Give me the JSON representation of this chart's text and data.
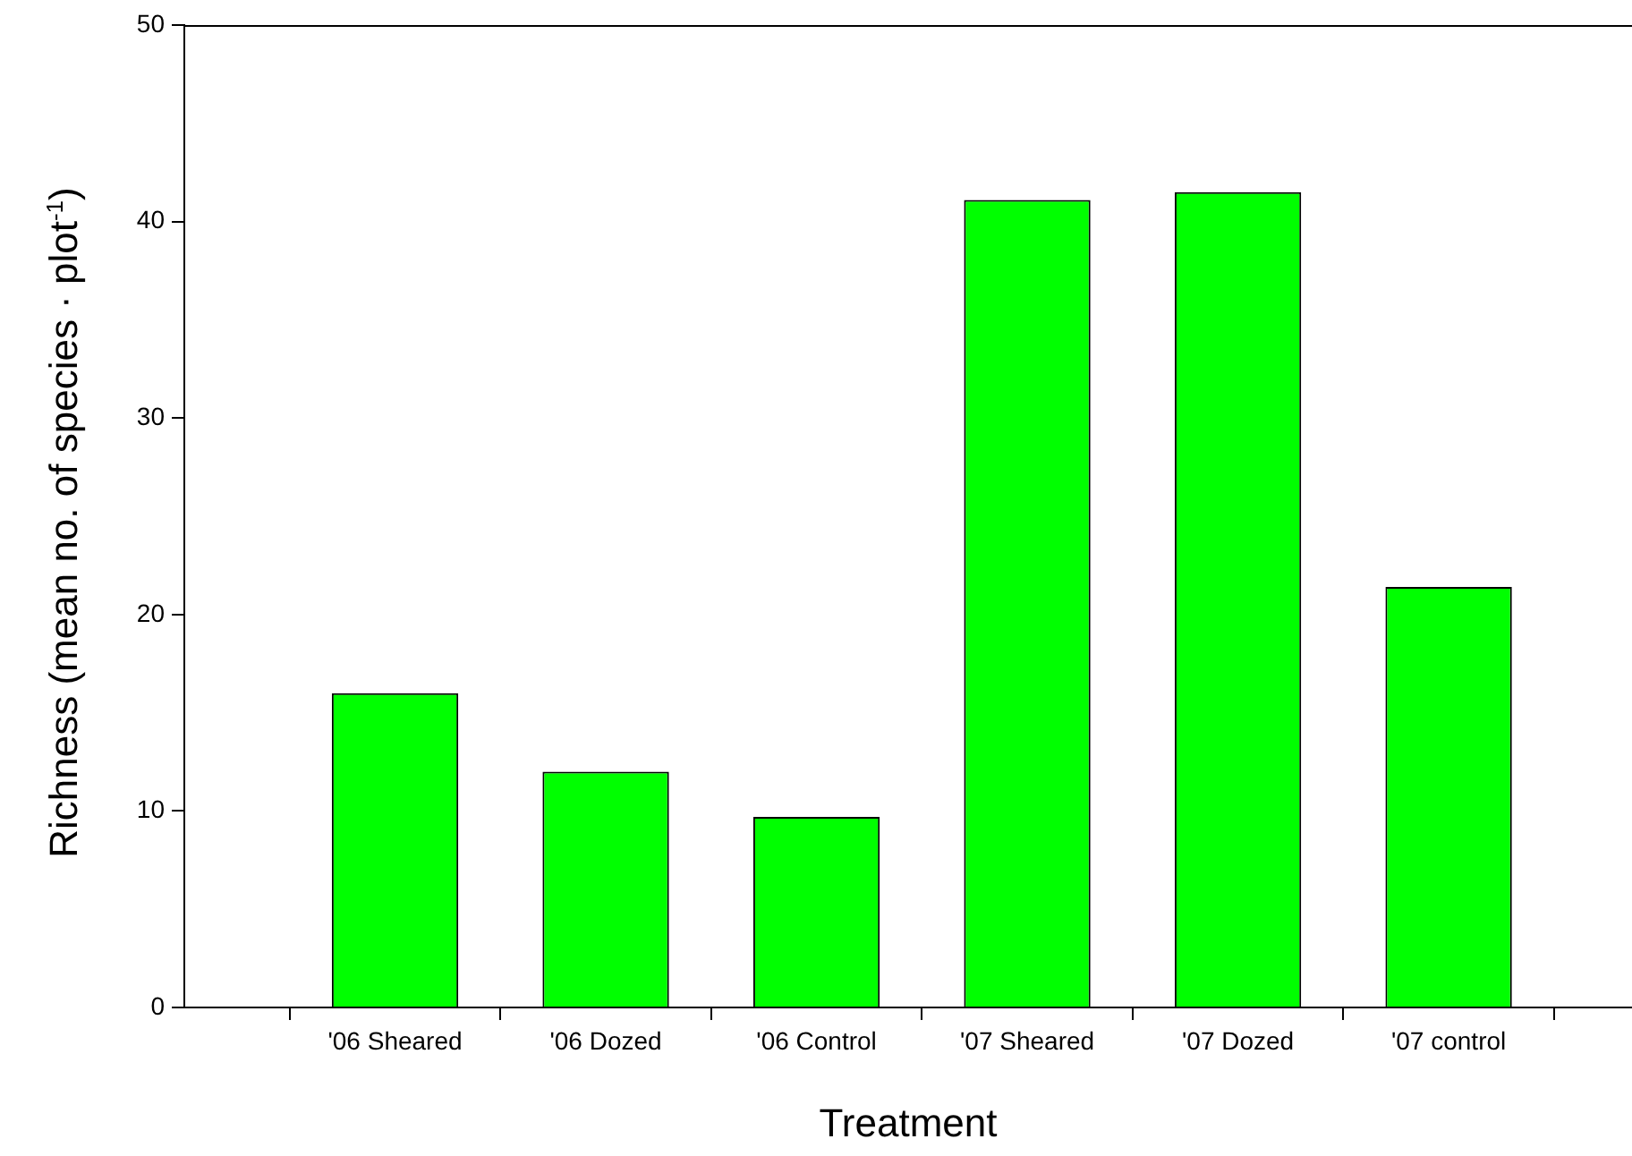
{
  "chart_data": {
    "type": "bar",
    "xlabel": "Treatment",
    "ylabel": "Richness (mean no. of species · plot$^{-1}$)",
    "categories": [
      "'06 Sheared",
      "'06 Dozed",
      "'06 Control",
      "'07 Sheared",
      "'07 Dozed",
      "'07 control"
    ],
    "values": [
      16,
      12,
      9.7,
      41.1,
      41.5,
      21.4
    ],
    "color": "#00ff00",
    "ylim": [
      0,
      50
    ],
    "yticks": [
      0,
      10,
      20,
      30,
      40,
      50
    ],
    "grid": false,
    "legend": false
  }
}
